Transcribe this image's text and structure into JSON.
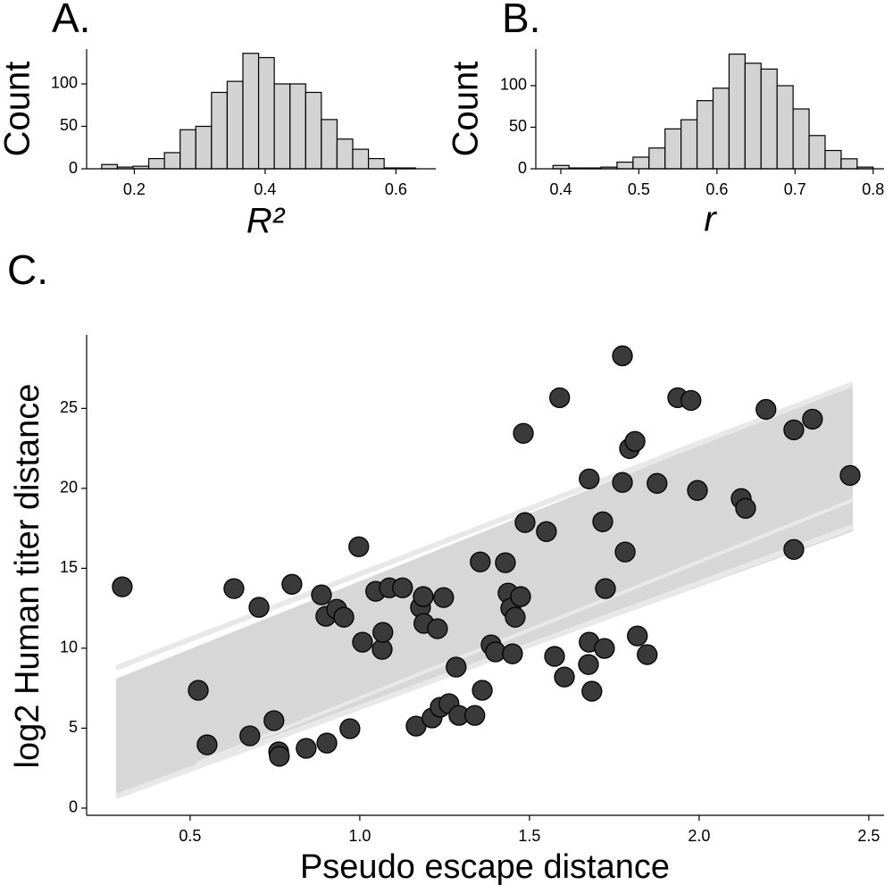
{
  "chart_data": [
    {
      "type": "histogram",
      "title": "A.",
      "xlabel": "R²",
      "ylabel": "Count",
      "color": "#d3d3d3",
      "edgecolor": "#000000",
      "bins": [
        0.15,
        0.174,
        0.198,
        0.222,
        0.246,
        0.27,
        0.294,
        0.318,
        0.342,
        0.366,
        0.39,
        0.414,
        0.438,
        0.462,
        0.486,
        0.51,
        0.534,
        0.558,
        0.582,
        0.606,
        0.63
      ],
      "values": [
        5,
        2,
        3,
        12,
        19,
        46,
        50,
        90,
        103,
        136,
        131,
        100,
        100,
        90,
        58,
        35,
        23,
        12,
        1,
        1
      ],
      "xlim": [
        0.127,
        0.661
      ],
      "ylim": [
        0,
        141
      ],
      "xticks": [
        0.2,
        0.4,
        0.6
      ],
      "yticks": [
        0,
        50,
        100
      ]
    },
    {
      "type": "histogram",
      "title": "B.",
      "xlabel": "r",
      "ylabel": "Count",
      "color": "#d3d3d3",
      "edgecolor": "#000000",
      "bins": [
        0.39,
        0.4105,
        0.431,
        0.4515,
        0.472,
        0.4925,
        0.513,
        0.5335,
        0.554,
        0.5745,
        0.595,
        0.6155,
        0.636,
        0.6565,
        0.677,
        0.6975,
        0.718,
        0.7385,
        0.759,
        0.7795,
        0.8
      ],
      "values": [
        4,
        1,
        1,
        2,
        8,
        14,
        25,
        48,
        59,
        82,
        97,
        138,
        127,
        120,
        100,
        72,
        40,
        22,
        12,
        2
      ],
      "xlim": [
        0.368,
        0.814
      ],
      "ylim": [
        0,
        144
      ],
      "xticks": [
        0.4,
        0.5,
        0.6,
        0.7,
        0.8
      ],
      "yticks": [
        0,
        50,
        100
      ]
    },
    {
      "type": "scatter",
      "title": "C.",
      "xlabel": "Pseudo escape distance",
      "ylabel": "log2 Human titer distance",
      "color": "#3a3a3a",
      "edgecolor": "#000000",
      "x": [
        0.3,
        0.524,
        0.55,
        0.629,
        0.676,
        0.703,
        0.747,
        0.761,
        0.763,
        0.8,
        0.842,
        0.887,
        0.9,
        0.903,
        0.932,
        0.953,
        0.971,
        0.997,
        1.008,
        1.047,
        1.066,
        1.068,
        1.087,
        1.126,
        1.166,
        1.179,
        1.187,
        1.189,
        1.213,
        1.229,
        1.237,
        1.247,
        1.263,
        1.284,
        1.292,
        1.339,
        1.355,
        1.361,
        1.387,
        1.4,
        1.429,
        1.437,
        1.445,
        1.45,
        1.458,
        1.474,
        1.482,
        1.487,
        1.55,
        1.574,
        1.589,
        1.603,
        1.676,
        1.676,
        1.674,
        1.684,
        1.716,
        1.721,
        1.724,
        1.774,
        1.774,
        1.782,
        1.795,
        1.811,
        1.818,
        1.847,
        1.876,
        1.937,
        1.976,
        1.995,
        2.124,
        2.137,
        2.197,
        2.279,
        2.279,
        2.334,
        2.445
      ],
      "values": [
        13.84,
        7.37,
        3.96,
        13.73,
        4.52,
        12.56,
        5.47,
        3.52,
        3.24,
        14.0,
        3.74,
        13.34,
        12.0,
        4.07,
        12.44,
        11.94,
        4.97,
        16.35,
        10.38,
        13.56,
        9.93,
        10.99,
        13.78,
        13.78,
        5.13,
        12.56,
        13.23,
        11.55,
        5.64,
        11.22,
        6.31,
        13.17,
        6.53,
        8.82,
        5.8,
        5.8,
        15.4,
        7.37,
        10.21,
        9.77,
        15.35,
        13.45,
        12.5,
        9.65,
        11.94,
        13.23,
        23.44,
        17.86,
        17.3,
        9.49,
        25.67,
        8.2,
        20.59,
        10.38,
        8.98,
        7.31,
        17.91,
        9.99,
        13.73,
        28.29,
        20.37,
        16.02,
        22.49,
        22.94,
        10.77,
        9.6,
        20.31,
        25.67,
        25.5,
        19.87,
        19.36,
        18.75,
        24.94,
        23.66,
        16.18,
        24.33,
        20.81
      ],
      "xlim": [
        0.195,
        2.545
      ],
      "ylim": [
        -0.45,
        29.6
      ],
      "xticks": [
        0.5,
        {
          "value": 1,
          "label": "1.0"
        },
        1.5,
        {
          "value": 2,
          "label": "2.0"
        },
        2.5
      ],
      "yticks": [
        0,
        5,
        10,
        15,
        20,
        25
      ]
    }
  ]
}
